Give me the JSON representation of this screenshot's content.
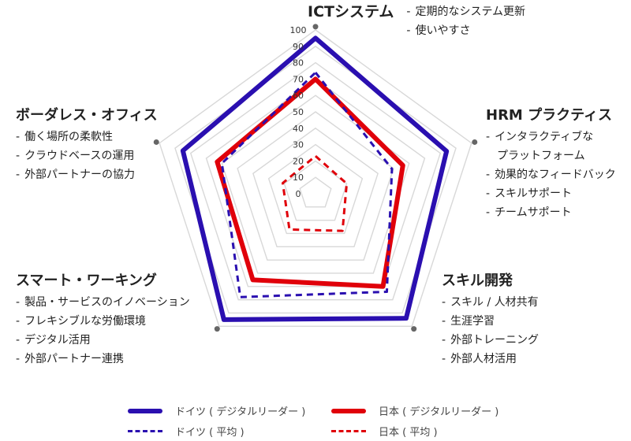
{
  "chart_data": {
    "type": "radar",
    "axes": [
      "ICTシステム",
      "HRM プラクティス",
      "スキル開発",
      "スマート・ワーキング",
      "ボーダレス・オフィス"
    ],
    "rlim": [
      0,
      100
    ],
    "tick_labels": [
      "0",
      "10",
      "20",
      "30",
      "40",
      "50",
      "60",
      "70",
      "80",
      "90",
      "100"
    ],
    "series": [
      {
        "name": "ドイツ ( デジタルリーダー )",
        "color": "#2a0fb0",
        "style": "solid",
        "values": [
          95,
          84,
          94,
          95,
          85
        ]
      },
      {
        "name": "日本 ( デジタルリーダー )",
        "color": "#e0000a",
        "style": "solid",
        "values": [
          70,
          56,
          70,
          65,
          63
        ]
      },
      {
        "name": "ドイツ ( 平均 )",
        "color": "#2a0fb0",
        "style": "dashed",
        "values": [
          74,
          49,
          74,
          78,
          60
        ]
      },
      {
        "name": "日本 ( 平均 )",
        "color": "#e0000a",
        "style": "dashed",
        "values": [
          23,
          20,
          28,
          27,
          21
        ]
      }
    ]
  },
  "categories": [
    {
      "title": "ICTシステム",
      "items": [
        "定期的なシステム更新",
        "使いやすさ"
      ]
    },
    {
      "title": "HRM プラクティス",
      "items": [
        "インタラクティブな",
        "プラットフォーム",
        "効果的なフィードバック",
        "スキルサポート",
        "チームサポート"
      ]
    },
    {
      "title": "スキル開発",
      "items": [
        "スキル / 人材共有",
        "生涯学習",
        "外部トレーニング",
        "外部人材活用"
      ]
    },
    {
      "title": "スマート・ワーキング",
      "items": [
        "製品・サービスのイノベーション",
        "フレキシブルな労働環境",
        "デジタル活用",
        "外部パートナー連携"
      ]
    },
    {
      "title": "ボーダレス・オフィス",
      "items": [
        "働く場所の柔軟性",
        "クラウドベースの運用",
        "外部パートナーの協力"
      ]
    }
  ],
  "colors": {
    "germany": "#2a0fb0",
    "japan": "#e0000a",
    "grid": "#d8d8d8",
    "tick": "#333333"
  }
}
